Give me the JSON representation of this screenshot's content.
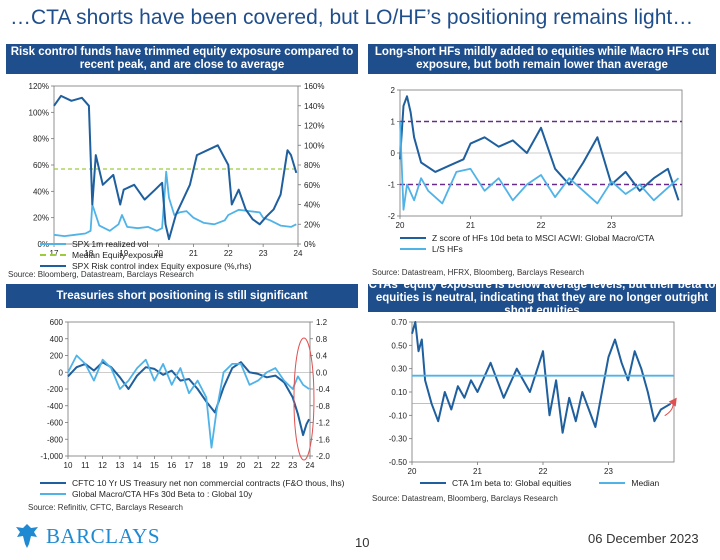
{
  "page_title": "…CTA shorts have been covered, but LO/HF’s positioning remains light…",
  "footer": {
    "brand": "BARCLAYS",
    "page_number": "10",
    "date": "06 December 2023"
  },
  "colors": {
    "header_bg": "#1f4e8c",
    "dark_blue": "#1f5f9e",
    "light_blue": "#4fb3e8",
    "green_dash": "#9ccc3c",
    "purple_dash": "#6a2a8a",
    "red_circle": "#e05050",
    "brand": "#1f8ad1"
  },
  "chart_data": [
    {
      "id": "risk-control",
      "type": "line",
      "title": "Risk control funds have trimmed equity exposure compared to recent peak, and are close to average",
      "x_ticks": [
        "17",
        "18",
        "19",
        "20",
        "21",
        "22",
        "23",
        "24"
      ],
      "x_range": [
        2017,
        2024
      ],
      "y_left_ticks": [
        "0%",
        "20%",
        "40%",
        "60%",
        "80%",
        "100%",
        "120%"
      ],
      "y_left_range": [
        0,
        120
      ],
      "y_right_ticks": [
        "0%",
        "20%",
        "40%",
        "60%",
        "80%",
        "100%",
        "120%",
        "140%",
        "160%"
      ],
      "y_right_range": [
        0,
        160
      ],
      "series": [
        {
          "name": "SPX 1m realized vol",
          "axis": "left",
          "style": "light",
          "x": [
            2017.0,
            2017.3,
            2017.6,
            2017.9,
            2018.05,
            2018.1,
            2018.3,
            2018.6,
            2018.85,
            2018.95,
            2019.1,
            2019.4,
            2019.7,
            2019.95,
            2020.1,
            2020.18,
            2020.22,
            2020.3,
            2020.45,
            2020.6,
            2020.8,
            2021.0,
            2021.3,
            2021.6,
            2021.9,
            2022.0,
            2022.3,
            2022.6,
            2022.9,
            2023.0,
            2023.2,
            2023.5,
            2023.8,
            2023.95
          ],
          "values": [
            7,
            6,
            7,
            8,
            10,
            30,
            14,
            10,
            15,
            22,
            13,
            12,
            13,
            10,
            12,
            40,
            55,
            35,
            22,
            24,
            25,
            20,
            16,
            15,
            18,
            22,
            26,
            25,
            24,
            20,
            18,
            14,
            13,
            15
          ]
        },
        {
          "name": "Median Equity exposure",
          "axis": "right",
          "style": "dash-green",
          "x": [
            2017.0,
            2024.0
          ],
          "values": [
            76,
            76
          ]
        },
        {
          "name": "SPX Risk control index Equity exposure (%,rhs)",
          "axis": "right",
          "style": "dark",
          "x": [
            2017.0,
            2017.2,
            2017.5,
            2017.8,
            2018.0,
            2018.1,
            2018.2,
            2018.4,
            2018.7,
            2018.9,
            2019.0,
            2019.3,
            2019.6,
            2019.9,
            2020.1,
            2020.2,
            2020.3,
            2020.5,
            2020.7,
            2020.9,
            2021.1,
            2021.4,
            2021.7,
            2022.0,
            2022.1,
            2022.3,
            2022.5,
            2022.7,
            2022.9,
            2023.1,
            2023.3,
            2023.5,
            2023.7,
            2023.8,
            2023.95
          ],
          "values": [
            140,
            150,
            145,
            148,
            140,
            40,
            90,
            60,
            70,
            40,
            55,
            60,
            45,
            55,
            62,
            20,
            5,
            30,
            45,
            60,
            90,
            95,
            100,
            80,
            40,
            55,
            35,
            25,
            20,
            28,
            35,
            50,
            95,
            90,
            72
          ]
        }
      ],
      "legend": [
        "SPX 1m realized vol",
        "Median Equity exposure",
        "SPX Risk control index Equity exposure (%,rhs)"
      ],
      "source": "Source: Bloomberg, Datastream, Barclays Research"
    },
    {
      "id": "ls-macro",
      "type": "line",
      "title": "Long-short HFs mildly added to equities while Macro HFs cut exposure, but both remain lower than average",
      "x_ticks": [
        "20",
        "21",
        "22",
        "23"
      ],
      "x_range": [
        2020,
        2024
      ],
      "y_ticks": [
        "-2",
        "-1",
        "0",
        "1",
        "2"
      ],
      "y_range": [
        -2,
        2
      ],
      "reference_lines": [
        1,
        -1
      ],
      "series": [
        {
          "name": "Z score of HFs 10d beta to MSCI ACWI: Global Macro/CTA",
          "style": "dark",
          "x": [
            2020.0,
            2020.05,
            2020.1,
            2020.15,
            2020.2,
            2020.3,
            2020.5,
            2020.7,
            2020.9,
            2021.0,
            2021.2,
            2021.4,
            2021.6,
            2021.8,
            2022.0,
            2022.2,
            2022.4,
            2022.6,
            2022.8,
            2023.0,
            2023.2,
            2023.4,
            2023.6,
            2023.8,
            2023.95
          ],
          "values": [
            -0.2,
            1.5,
            1.8,
            1.3,
            0.5,
            -0.3,
            -0.6,
            -0.4,
            -0.2,
            0.3,
            0.5,
            0.2,
            0.4,
            0.0,
            0.8,
            -0.5,
            -1.0,
            -0.3,
            0.5,
            -1.0,
            -0.6,
            -1.2,
            -0.8,
            -0.5,
            -1.5
          ]
        },
        {
          "name": "L/S HFs",
          "style": "light",
          "x": [
            2020.0,
            2020.05,
            2020.1,
            2020.2,
            2020.3,
            2020.4,
            2020.6,
            2020.8,
            2021.0,
            2021.2,
            2021.4,
            2021.6,
            2021.8,
            2022.0,
            2022.2,
            2022.4,
            2022.6,
            2022.8,
            2023.0,
            2023.2,
            2023.4,
            2023.6,
            2023.8,
            2023.95
          ],
          "values": [
            1.0,
            -1.8,
            -1.0,
            -1.5,
            -0.8,
            -1.2,
            -1.6,
            -0.6,
            -0.5,
            -1.2,
            -0.8,
            -1.5,
            -1.0,
            -0.7,
            -1.4,
            -0.8,
            -1.2,
            -1.6,
            -0.9,
            -1.3,
            -1.0,
            -1.5,
            -1.1,
            -0.8
          ]
        }
      ],
      "legend": [
        "Z score of HFs 10d beta to MSCI ACWI: Global Macro/CTA",
        "L/S HFs"
      ],
      "source": "Source: Datastream, HFRX, Bloomberg, Barclays Research"
    },
    {
      "id": "treasuries",
      "type": "line",
      "title": "Treasuries short positioning is still significant",
      "x_ticks": [
        "10",
        "11",
        "12",
        "13",
        "14",
        "15",
        "16",
        "17",
        "18",
        "19",
        "20",
        "21",
        "22",
        "23",
        "24"
      ],
      "x_range": [
        2010,
        2024
      ],
      "y_left_ticks": [
        "-1,000",
        "-800",
        "-600",
        "-400",
        "-200",
        "0",
        "200",
        "400",
        "600"
      ],
      "y_left_range": [
        -1000,
        600
      ],
      "y_right_ticks": [
        "-2.0",
        "-1.6",
        "-1.2",
        "-0.8",
        "-0.4",
        "0.0",
        "0.4",
        "0.8",
        "1.2"
      ],
      "y_right_range": [
        -2.0,
        1.2
      ],
      "series": [
        {
          "name": "CFTC 10 Yr US Treasury net non commercial contracts (F&O thous, lhs)",
          "axis": "left",
          "style": "dark",
          "x": [
            2010.0,
            2010.5,
            2011.0,
            2011.5,
            2012.0,
            2012.5,
            2013.0,
            2013.5,
            2014.0,
            2014.5,
            2015.0,
            2015.5,
            2016.0,
            2016.5,
            2017.0,
            2017.5,
            2018.0,
            2018.5,
            2019.0,
            2019.5,
            2020.0,
            2020.5,
            2021.0,
            2021.5,
            2022.0,
            2022.5,
            2023.0,
            2023.3,
            2023.6,
            2023.8,
            2023.95
          ],
          "values": [
            -50,
            60,
            100,
            20,
            120,
            60,
            -60,
            -200,
            -40,
            60,
            40,
            -30,
            20,
            -100,
            -80,
            -200,
            -350,
            -480,
            -180,
            50,
            120,
            0,
            -20,
            -60,
            -40,
            -120,
            -300,
            -500,
            -750,
            -620,
            -560
          ]
        },
        {
          "name": "Global Macro/CTA HFs 30d Beta to : Global 10y",
          "axis": "right",
          "style": "light",
          "x": [
            2010.0,
            2010.5,
            2011.0,
            2011.5,
            2012.0,
            2012.5,
            2013.0,
            2013.5,
            2014.0,
            2014.5,
            2015.0,
            2015.5,
            2016.0,
            2016.5,
            2017.0,
            2017.5,
            2018.0,
            2018.3,
            2018.6,
            2019.0,
            2019.5,
            2020.0,
            2020.5,
            2021.0,
            2021.5,
            2022.0,
            2022.5,
            2023.0,
            2023.3,
            2023.6,
            2023.95
          ],
          "values": [
            0.0,
            0.4,
            0.2,
            -0.2,
            0.3,
            0.1,
            -0.4,
            -0.2,
            0.1,
            0.3,
            -0.2,
            0.2,
            -0.3,
            0.1,
            -0.5,
            -0.2,
            -0.6,
            -1.8,
            -0.9,
            0.0,
            0.2,
            0.2,
            -0.3,
            -0.2,
            0.0,
            0.1,
            -0.2,
            -0.4,
            -0.1,
            -0.3,
            -0.4
          ]
        }
      ],
      "legend": [
        "CFTC 10 Yr US Treasury net non commercial contracts (F&O thous, lhs)",
        "Global Macro/CTA HFs 30d Beta to : Global 10y"
      ],
      "source": "Source: Refinitiv, CFTC, Barclays Research"
    },
    {
      "id": "cta-beta",
      "type": "line",
      "title": "CTAs’ equity exposure is below average levels, but their beta to equities is neutral, indicating that they are no longer outright short equities",
      "x_ticks": [
        "20",
        "21",
        "22",
        "23"
      ],
      "x_range": [
        2020,
        2024
      ],
      "y_ticks": [
        "-0.50",
        "-0.30",
        "-0.10",
        "0.10",
        "0.30",
        "0.50",
        "0.70"
      ],
      "y_range": [
        -0.5,
        0.7
      ],
      "series": [
        {
          "name": "CTA 1m beta to: Global equities",
          "style": "dark",
          "x": [
            2020.0,
            2020.05,
            2020.1,
            2020.15,
            2020.2,
            2020.3,
            2020.4,
            2020.5,
            2020.6,
            2020.7,
            2020.8,
            2020.9,
            2021.0,
            2021.2,
            2021.4,
            2021.6,
            2021.8,
            2022.0,
            2022.1,
            2022.2,
            2022.3,
            2022.4,
            2022.5,
            2022.6,
            2022.8,
            2023.0,
            2023.1,
            2023.2,
            2023.3,
            2023.4,
            2023.5,
            2023.6,
            2023.7,
            2023.8,
            2023.95
          ],
          "values": [
            0.6,
            0.7,
            0.45,
            0.55,
            0.2,
            0.0,
            -0.15,
            0.1,
            -0.05,
            0.15,
            0.05,
            0.2,
            0.1,
            0.35,
            0.05,
            0.3,
            0.1,
            0.45,
            -0.1,
            0.2,
            -0.25,
            0.05,
            -0.15,
            0.1,
            -0.2,
            0.4,
            0.55,
            0.35,
            0.2,
            0.45,
            0.3,
            0.1,
            -0.15,
            -0.05,
            0.0
          ]
        },
        {
          "name": "Median",
          "style": "light",
          "x": [
            2020.0,
            2024.0
          ],
          "values": [
            0.24,
            0.24
          ]
        }
      ],
      "legend": [
        "CTA 1m beta to: Global equities",
        "Median"
      ],
      "source": "Source: Datastream, Bloomberg, Barclays Research"
    }
  ]
}
